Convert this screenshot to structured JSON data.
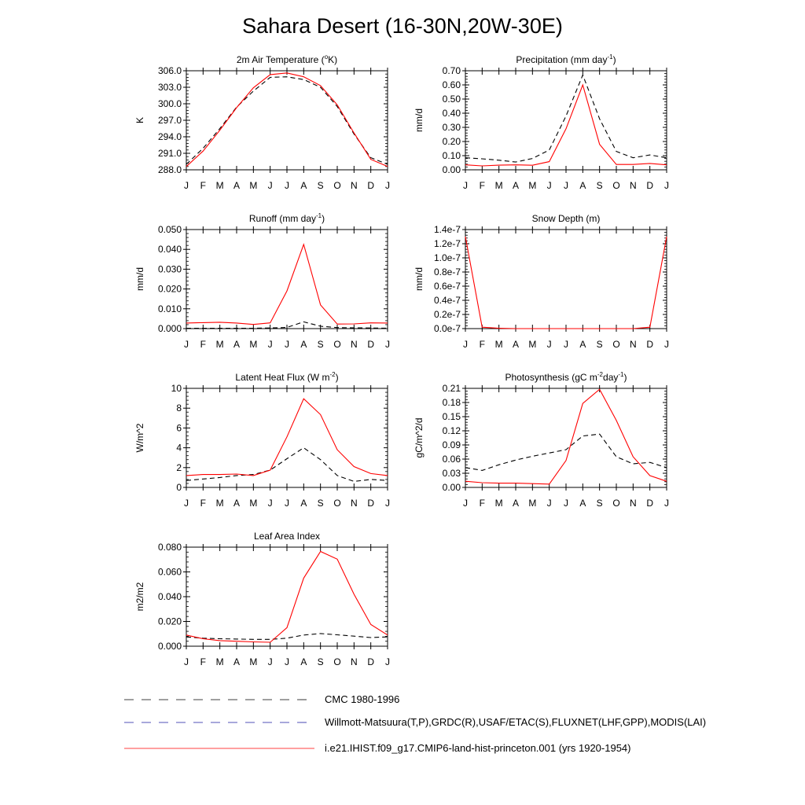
{
  "title": "Sahara Desert (16-30N,20W-30E)",
  "months": [
    "J",
    "F",
    "M",
    "A",
    "M",
    "J",
    "J",
    "A",
    "S",
    "O",
    "N",
    "D",
    "J"
  ],
  "colors": {
    "obs": "#000000",
    "model": "#ff0000"
  },
  "legend": [
    {
      "label": "CMC 1980-1996",
      "style": "dash-black"
    },
    {
      "label": "Willmott-Matsuura(T,P),GRDC(R),USAF/ETAC(S),FLUXNET(LHF,GPP),MODIS(LAI)",
      "style": "dash-blue"
    },
    {
      "label": "i.e21.IHIST.f09_g17.CMIP6-land-hist-princeton.001 (yrs 1920-1954)",
      "style": "solid-red"
    }
  ],
  "chart_data": [
    {
      "type": "line",
      "title": "2m Air Temperature (",
      "title_sup": "o",
      "title_after": "K)",
      "ylabel": "K",
      "ylim": [
        288.0,
        306.0
      ],
      "yticks": [
        "288.0",
        "291.0",
        "294.0",
        "297.0",
        "300.0",
        "303.0",
        "306.0"
      ],
      "x": [
        "J",
        "F",
        "M",
        "A",
        "M",
        "J",
        "J",
        "A",
        "S",
        "O",
        "N",
        "D",
        "J"
      ],
      "series": [
        {
          "style": "obs",
          "values": [
            289.0,
            291.9,
            295.5,
            299.4,
            302.3,
            304.8,
            304.9,
            304.4,
            303.0,
            299.5,
            294.5,
            290.2,
            289.0
          ]
        },
        {
          "style": "model",
          "values": [
            288.6,
            291.4,
            295.2,
            299.3,
            302.9,
            305.3,
            305.6,
            304.9,
            303.3,
            299.8,
            294.7,
            289.9,
            288.6
          ]
        }
      ]
    },
    {
      "type": "line",
      "title": "Precipitation (mm day",
      "title_sup": "-1",
      "title_after": ")",
      "ylabel": "mm/d",
      "ylim": [
        0.0,
        0.7
      ],
      "yticks": [
        "0.00",
        "0.10",
        "0.20",
        "0.30",
        "0.40",
        "0.50",
        "0.60",
        "0.70"
      ],
      "x": [
        "J",
        "F",
        "M",
        "A",
        "M",
        "J",
        "J",
        "A",
        "S",
        "O",
        "N",
        "D",
        "J"
      ],
      "series": [
        {
          "style": "obs",
          "values": [
            0.085,
            0.078,
            0.068,
            0.055,
            0.08,
            0.14,
            0.38,
            0.67,
            0.36,
            0.13,
            0.085,
            0.105,
            0.085
          ]
        },
        {
          "style": "model",
          "values": [
            0.035,
            0.028,
            0.033,
            0.035,
            0.032,
            0.058,
            0.29,
            0.6,
            0.18,
            0.038,
            0.038,
            0.045,
            0.035
          ]
        }
      ]
    },
    {
      "type": "line",
      "title": "Runoff (mm day",
      "title_sup": "-1",
      "title_after": ")",
      "ylabel": "mm/d",
      "ylim": [
        0.0,
        0.05
      ],
      "yticks": [
        "0.000",
        "0.010",
        "0.020",
        "0.030",
        "0.040",
        "0.050"
      ],
      "x": [
        "J",
        "F",
        "M",
        "A",
        "M",
        "J",
        "J",
        "A",
        "S",
        "O",
        "N",
        "D",
        "J"
      ],
      "series": [
        {
          "style": "obs",
          "values": [
            0.0002,
            0.0002,
            0.0002,
            0.0002,
            0.0002,
            0.0003,
            0.0006,
            0.0034,
            0.0012,
            0.0005,
            0.0004,
            0.0003,
            0.0002
          ]
        },
        {
          "style": "model",
          "values": [
            0.0028,
            0.003,
            0.0032,
            0.0028,
            0.0021,
            0.0029,
            0.019,
            0.0425,
            0.012,
            0.0023,
            0.0024,
            0.0029,
            0.0028
          ]
        }
      ]
    },
    {
      "type": "line",
      "title": "Snow Depth (m)",
      "title_sup": "",
      "title_after": "",
      "ylabel": "mm/d",
      "ylim": [
        0.0,
        1.4e-07
      ],
      "yticks": [
        "0.0e-7",
        "0.2e-7",
        "0.4e-7",
        "0.6e-7",
        "0.8e-7",
        "1.0e-7",
        "1.2e-7",
        "1.4e-7"
      ],
      "x": [
        "J",
        "F",
        "M",
        "A",
        "M",
        "J",
        "J",
        "A",
        "S",
        "O",
        "N",
        "D",
        "J"
      ],
      "series": [
        {
          "style": "obs",
          "values": [
            0,
            0,
            0,
            0,
            0,
            0,
            0,
            0,
            0,
            0,
            0,
            0,
            0
          ]
        },
        {
          "style": "model",
          "values": [
            1.3e-07,
            2e-09,
            5e-10,
            0.0,
            0.0,
            0.0,
            0.0,
            0.0,
            0.0,
            0.0,
            0.0,
            2e-09,
            1.3e-07
          ]
        }
      ]
    },
    {
      "type": "line",
      "title": "Latent Heat Flux (W m",
      "title_sup": "-2",
      "title_after": ")",
      "ylabel": "W/m^2",
      "ylim": [
        0,
        10
      ],
      "yticks": [
        "0",
        "2",
        "4",
        "6",
        "8",
        "10"
      ],
      "x": [
        "J",
        "F",
        "M",
        "A",
        "M",
        "J",
        "J",
        "A",
        "S",
        "O",
        "N",
        "D",
        "J"
      ],
      "series": [
        {
          "style": "obs",
          "values": [
            0.7,
            0.85,
            1.0,
            1.2,
            1.3,
            1.75,
            2.9,
            4.0,
            2.8,
            1.2,
            0.6,
            0.8,
            0.7
          ]
        },
        {
          "style": "model",
          "values": [
            1.2,
            1.3,
            1.3,
            1.35,
            1.2,
            1.75,
            5.1,
            8.95,
            7.35,
            3.8,
            2.1,
            1.4,
            1.2
          ]
        }
      ]
    },
    {
      "type": "line",
      "title": "Photosynthesis (gC m",
      "title_sup": "-2",
      "title_after": "day",
      "title_sup2": "-1",
      "title_after2": ")",
      "ylabel": "gC/m^2/d",
      "ylim": [
        0.0,
        0.21
      ],
      "yticks": [
        "0.00",
        "0.03",
        "0.06",
        "0.09",
        "0.12",
        "0.15",
        "0.18",
        "0.21"
      ],
      "x": [
        "J",
        "F",
        "M",
        "A",
        "M",
        "J",
        "J",
        "A",
        "S",
        "O",
        "N",
        "D",
        "J"
      ],
      "series": [
        {
          "style": "obs",
          "values": [
            0.042,
            0.036,
            0.048,
            0.058,
            0.066,
            0.073,
            0.08,
            0.109,
            0.113,
            0.065,
            0.05,
            0.053,
            0.042
          ]
        },
        {
          "style": "model",
          "values": [
            0.013,
            0.01,
            0.009,
            0.009,
            0.008,
            0.007,
            0.057,
            0.178,
            0.208,
            0.142,
            0.065,
            0.025,
            0.013
          ]
        }
      ]
    },
    {
      "type": "line",
      "title": "Leaf Area Index",
      "title_sup": "",
      "title_after": "",
      "ylabel": "m2/m2",
      "ylim": [
        0.0,
        0.08
      ],
      "yticks": [
        "0.000",
        "0.020",
        "0.040",
        "0.060",
        "0.080"
      ],
      "x": [
        "J",
        "F",
        "M",
        "A",
        "M",
        "J",
        "J",
        "A",
        "S",
        "O",
        "N",
        "D",
        "J"
      ],
      "series": [
        {
          "style": "obs",
          "values": [
            0.0075,
            0.0065,
            0.006,
            0.0058,
            0.0055,
            0.0055,
            0.0065,
            0.009,
            0.0102,
            0.0092,
            0.0081,
            0.007,
            0.0075
          ]
        },
        {
          "style": "model",
          "values": [
            0.009,
            0.006,
            0.0045,
            0.004,
            0.0035,
            0.0032,
            0.015,
            0.055,
            0.0765,
            0.0703,
            0.042,
            0.0175,
            0.009
          ]
        }
      ]
    }
  ]
}
